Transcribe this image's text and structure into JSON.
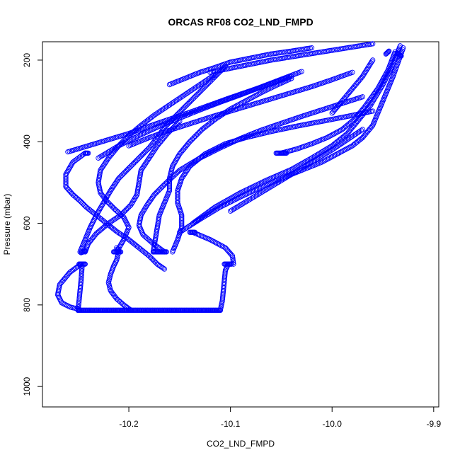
{
  "chart_data": {
    "type": "scatter",
    "title": "ORCAS RF08 CO2_LND_FMPD",
    "xlabel": "CO2_LND_FMPD",
    "ylabel": "Pressure (mbar)",
    "xlim": [
      -10.285,
      -9.895
    ],
    "ylim": [
      1050,
      155
    ],
    "y_reversed": true,
    "x_ticks": [
      -10.2,
      -10.1,
      -10.0,
      -9.9
    ],
    "x_tick_labels": [
      "-10.2",
      "-10.1",
      "-10.0",
      "-9.9"
    ],
    "y_ticks": [
      200,
      400,
      600,
      800,
      1000
    ],
    "y_tick_labels": [
      "200",
      "400",
      "600",
      "800",
      "1000"
    ],
    "grid": false,
    "marker": "open-circle",
    "color": "#0000ff",
    "series": [
      {
        "x": [
          -10.243,
          -10.255,
          -10.262,
          -10.262,
          -10.255,
          -10.248,
          -10.242,
          -10.232,
          -10.222,
          -10.212,
          -10.2,
          -10.19,
          -10.18,
          -10.172,
          -10.165
        ],
        "y": [
          428,
          450,
          480,
          510,
          530,
          545,
          560,
          580,
          600,
          620,
          640,
          660,
          680,
          700,
          712
        ]
      },
      {
        "x": [
          -10.248,
          -10.243,
          -10.238,
          -10.232,
          -10.225,
          -10.218,
          -10.21,
          -10.2,
          -10.19,
          -10.18,
          -10.172,
          -10.165,
          -10.155,
          -10.145,
          -10.135,
          -10.125,
          -10.115,
          -10.105
        ],
        "y": [
          670,
          640,
          610,
          580,
          550,
          520,
          490,
          465,
          440,
          415,
          390,
          365,
          340,
          315,
          290,
          265,
          240,
          215
        ]
      },
      {
        "x": [
          -10.247,
          -10.258,
          -10.268,
          -10.27,
          -10.266,
          -10.258,
          -10.25,
          -10.25,
          -10.2,
          -10.15,
          -10.11
        ],
        "y": [
          700,
          720,
          750,
          775,
          795,
          805,
          810,
          813,
          813,
          813,
          813
        ]
      },
      {
        "x": [
          -10.11,
          -10.108,
          -10.107,
          -10.106,
          -10.105,
          -10.102
        ],
        "y": [
          813,
          790,
          765,
          740,
          715,
          700
        ]
      },
      {
        "x": [
          -10.25,
          -10.249,
          -10.248,
          -10.247,
          -10.246
        ],
        "y": [
          813,
          790,
          765,
          740,
          705
        ]
      },
      {
        "x": [
          -10.198,
          -10.205,
          -10.212,
          -10.218,
          -10.22,
          -10.218,
          -10.215,
          -10.212,
          -10.21,
          -10.212
        ],
        "y": [
          813,
          800,
          785,
          765,
          745,
          725,
          705,
          690,
          670,
          660
        ]
      },
      {
        "x": [
          -10.212,
          -10.205,
          -10.2,
          -10.205,
          -10.214,
          -10.222,
          -10.228,
          -10.23,
          -10.228,
          -10.22,
          -10.21,
          -10.2,
          -10.188,
          -10.175,
          -10.16,
          -10.145,
          -10.13,
          -10.115
        ],
        "y": [
          670,
          640,
          610,
          585,
          565,
          545,
          525,
          500,
          470,
          440,
          410,
          385,
          360,
          335,
          310,
          285,
          260,
          235
        ]
      },
      {
        "x": [
          -10.243,
          -10.24,
          -10.232,
          -10.22,
          -10.208,
          -10.198,
          -10.192,
          -10.19,
          -10.188,
          -10.18,
          -10.172,
          -10.162,
          -10.15
        ],
        "y": [
          670,
          650,
          625,
          600,
          580,
          555,
          530,
          500,
          470,
          440,
          410,
          380,
          350
        ]
      },
      {
        "x": [
          -10.176,
          -10.174,
          -10.172,
          -10.17,
          -10.165,
          -10.16,
          -10.16,
          -10.157,
          -10.15,
          -10.14,
          -10.128,
          -10.115,
          -10.1,
          -10.085,
          -10.07,
          -10.055,
          -10.04
        ],
        "y": [
          670,
          640,
          610,
          580,
          550,
          520,
          490,
          460,
          430,
          400,
          370,
          345,
          320,
          300,
          280,
          262,
          245
        ]
      },
      {
        "x": [
          -10.165,
          -10.176,
          -10.186,
          -10.19,
          -10.188,
          -10.182,
          -10.175,
          -10.165,
          -10.15,
          -10.13,
          -10.11,
          -10.09,
          -10.07,
          -10.05,
          -10.03,
          -10.01,
          -9.99,
          -9.97
        ],
        "y": [
          670,
          650,
          628,
          605,
          580,
          555,
          530,
          505,
          470,
          440,
          415,
          392,
          372,
          355,
          338,
          322,
          306,
          290
        ]
      },
      {
        "x": [
          -10.157,
          -10.152,
          -10.148,
          -10.148,
          -10.152,
          -10.152,
          -10.148,
          -10.14,
          -10.125,
          -10.105,
          -10.085,
          -10.06,
          -10.035,
          -10.01,
          -9.985,
          -9.96
        ],
        "y": [
          670,
          640,
          610,
          580,
          550,
          520,
          490,
          460,
          430,
          405,
          390,
          375,
          362,
          350,
          338,
          325
        ]
      },
      {
        "x": [
          -10.137,
          -10.12,
          -10.105,
          -10.098,
          -10.097
        ],
        "y": [
          622,
          640,
          660,
          680,
          700
        ]
      },
      {
        "x": [
          -10.15,
          -10.13,
          -10.11,
          -10.09,
          -10.07,
          -10.05,
          -10.03,
          -10.01,
          -9.995,
          -9.98,
          -9.97,
          -9.96,
          -9.95,
          -9.94,
          -9.93
        ],
        "y": [
          622,
          590,
          560,
          535,
          512,
          490,
          470,
          450,
          430,
          410,
          390,
          360,
          300,
          240,
          170
        ]
      },
      {
        "x": [
          -10.137,
          -10.115,
          -10.09,
          -10.065,
          -10.04,
          -10.02,
          -10.0,
          -9.985,
          -9.975,
          -9.962,
          -9.95,
          -9.94,
          -9.933
        ],
        "y": [
          600,
          560,
          525,
          495,
          468,
          440,
          410,
          380,
          350,
          310,
          260,
          210,
          165
        ]
      },
      {
        "x": [
          -10.05,
          -10.035,
          -10.02,
          -10.005,
          -9.99,
          -9.978,
          -9.968,
          -9.955,
          -9.945,
          -9.938
        ],
        "y": [
          428,
          418,
          405,
          390,
          370,
          345,
          315,
          270,
          225,
          180
        ]
      },
      {
        "x": [
          -10.1,
          -10.08,
          -10.06,
          -10.04,
          -10.02,
          -10.0,
          -9.985,
          -9.97
        ],
        "y": [
          570,
          540,
          510,
          480,
          450,
          420,
          395,
          370
        ]
      },
      {
        "x": [
          -10.2,
          -10.18,
          -10.16,
          -10.14,
          -10.12,
          -10.1,
          -10.08,
          -10.06,
          -10.04,
          -10.02,
          -10.0,
          -9.98
        ],
        "y": [
          410,
          390,
          372,
          356,
          340,
          325,
          310,
          295,
          280,
          265,
          248,
          230
        ]
      },
      {
        "x": [
          -10.23,
          -10.21,
          -10.19,
          -10.17,
          -10.15,
          -10.13,
          -10.11,
          -10.09,
          -10.07,
          -10.05,
          -10.03
        ],
        "y": [
          440,
          410,
          385,
          362,
          342,
          322,
          303,
          285,
          266,
          247,
          228
        ]
      },
      {
        "x": [
          -10.26,
          -10.24,
          -10.22,
          -10.2,
          -10.18,
          -10.16,
          -10.14,
          -10.12,
          -10.1,
          -10.08,
          -10.06,
          -10.04
        ],
        "y": [
          425,
          410,
          395,
          380,
          362,
          345,
          328,
          310,
          292,
          275,
          258,
          240
        ]
      },
      {
        "x": [
          -10.16,
          -10.145,
          -10.13,
          -10.115,
          -10.1,
          -10.08,
          -10.06,
          -10.04,
          -10.02
        ],
        "y": [
          260,
          245,
          230,
          218,
          205,
          195,
          185,
          178,
          170
        ]
      },
      {
        "x": [
          -10.12,
          -10.1,
          -10.08,
          -10.06,
          -10.04,
          -10.02,
          -10.0,
          -9.98,
          -9.96
        ],
        "y": [
          230,
          220,
          210,
          200,
          192,
          184,
          176,
          168,
          160
        ]
      },
      {
        "x": [
          -10.0,
          -9.99,
          -9.98,
          -9.97,
          -9.96
        ],
        "y": [
          330,
          300,
          270,
          240,
          200
        ]
      }
    ],
    "dense_runs": [
      {
        "x": [
          -10.25,
          -10.11
        ],
        "y": [
          813,
          813
        ]
      },
      {
        "x": [
          -10.249,
          -10.243
        ],
        "y": [
          700,
          700
        ]
      },
      {
        "x": [
          -10.247,
          -10.243
        ],
        "y": [
          672,
          668
        ]
      },
      {
        "x": [
          -10.215,
          -10.208
        ],
        "y": [
          670,
          670
        ]
      },
      {
        "x": [
          -10.176,
          -10.163
        ],
        "y": [
          670,
          670
        ]
      },
      {
        "x": [
          -10.14,
          -10.135
        ],
        "y": [
          622,
          622
        ]
      },
      {
        "x": [
          -10.106,
          -10.099
        ],
        "y": [
          700,
          700
        ]
      },
      {
        "x": [
          -10.055,
          -10.045
        ],
        "y": [
          428,
          428
        ]
      },
      {
        "x": [
          -10.243,
          -10.24
        ],
        "y": [
          428,
          428
        ]
      },
      {
        "x": [
          -9.947,
          -9.944
        ],
        "y": [
          185,
          178
        ]
      },
      {
        "x": [
          -9.936,
          -9.932
        ],
        "y": [
          182,
          190
        ]
      }
    ]
  }
}
